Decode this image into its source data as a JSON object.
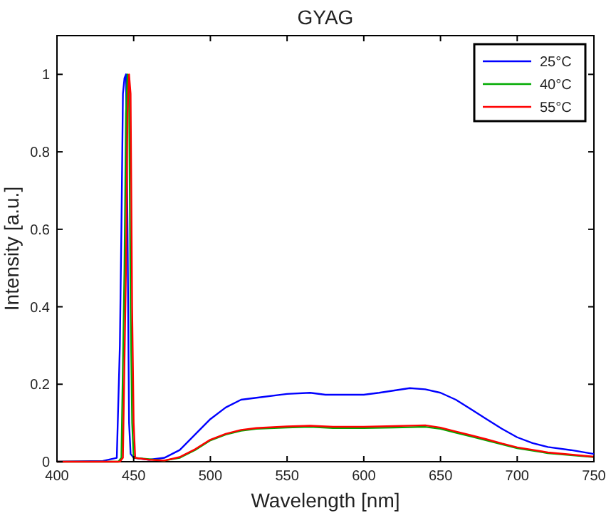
{
  "chart_data": {
    "type": "line",
    "title": "GYAG",
    "xlabel": "Wavelength [nm]",
    "ylabel": "Intensity [a.u.]",
    "xlim": [
      400,
      750
    ],
    "ylim": [
      0,
      1.1
    ],
    "xticks": [
      400,
      450,
      500,
      550,
      600,
      650,
      700,
      750
    ],
    "yticks": [
      0,
      0.2,
      0.4,
      0.6,
      0.8,
      1
    ],
    "grid": false,
    "legend": "top right",
    "series": [
      {
        "name": "25°C",
        "color": "#0000ff",
        "x": [
          400,
          430,
          439,
          441,
          442,
          443,
          444,
          445,
          446,
          447,
          448,
          450,
          460,
          470,
          480,
          490,
          500,
          510,
          520,
          530,
          550,
          565,
          575,
          600,
          610,
          630,
          640,
          650,
          660,
          670,
          680,
          690,
          700,
          710,
          720,
          735,
          750
        ],
        "values": [
          0,
          0.002,
          0.01,
          0.3,
          0.6,
          0.95,
          0.99,
          1.0,
          0.6,
          0.1,
          0.02,
          0.01,
          0.005,
          0.01,
          0.03,
          0.07,
          0.11,
          0.14,
          0.16,
          0.165,
          0.175,
          0.178,
          0.173,
          0.173,
          0.178,
          0.19,
          0.187,
          0.178,
          0.16,
          0.135,
          0.11,
          0.085,
          0.063,
          0.048,
          0.038,
          0.03,
          0.02
        ]
      },
      {
        "name": "40°C",
        "color": "#00aa00",
        "x": [
          400,
          440,
          442,
          444,
          445,
          446,
          447,
          448,
          449,
          450,
          470,
          480,
          490,
          500,
          510,
          520,
          530,
          550,
          565,
          580,
          600,
          620,
          640,
          650,
          660,
          670,
          680,
          690,
          700,
          720,
          750
        ],
        "values": [
          0,
          0,
          0.01,
          0.5,
          0.9,
          1.0,
          0.95,
          0.4,
          0.1,
          0.01,
          0.003,
          0.01,
          0.03,
          0.055,
          0.07,
          0.08,
          0.085,
          0.088,
          0.09,
          0.087,
          0.087,
          0.088,
          0.09,
          0.085,
          0.075,
          0.065,
          0.055,
          0.045,
          0.035,
          0.022,
          0.012
        ]
      },
      {
        "name": "55°C",
        "color": "#ff0000",
        "x": [
          400,
          441,
          443,
          445,
          446,
          447,
          448,
          449,
          450,
          451,
          460,
          470,
          480,
          490,
          500,
          510,
          520,
          530,
          550,
          565,
          580,
          600,
          620,
          640,
          650,
          660,
          670,
          680,
          690,
          700,
          720,
          750
        ],
        "values": [
          0,
          0,
          0.01,
          0.5,
          0.9,
          1.0,
          0.95,
          0.4,
          0.1,
          0.01,
          0.005,
          0.003,
          0.012,
          0.032,
          0.057,
          0.072,
          0.082,
          0.087,
          0.091,
          0.093,
          0.09,
          0.09,
          0.092,
          0.094,
          0.088,
          0.078,
          0.068,
          0.058,
          0.047,
          0.037,
          0.024,
          0.013
        ]
      }
    ]
  }
}
